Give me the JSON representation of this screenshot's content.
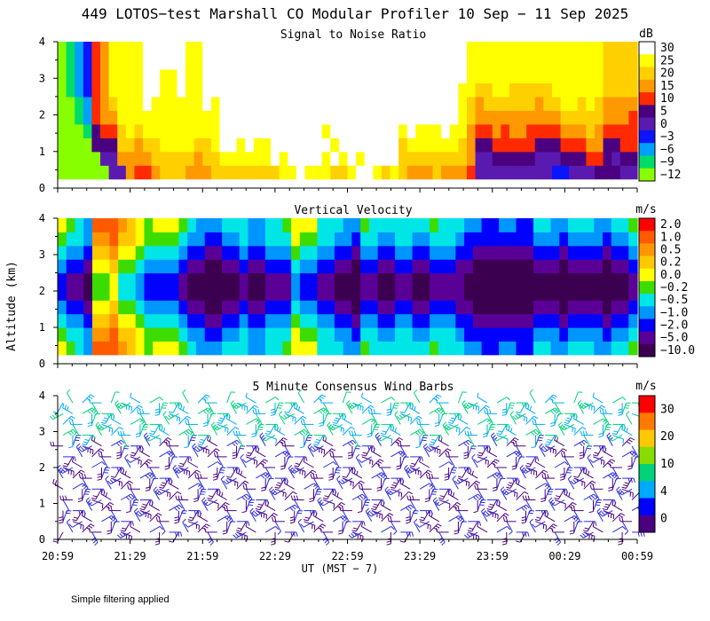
{
  "title": "449 LOTOS−test Marshall CO Modular Profiler 10 Sep − 11 Sep 2025",
  "xlabel": "UT  (MST − 7)",
  "ylabel": "Altitude (km)",
  "footnote": "Simple filtering applied",
  "x_ticks": [
    "20:59",
    "21:29",
    "21:59",
    "22:29",
    "22:59",
    "23:29",
    "23:59",
    "00:29",
    "00:59"
  ],
  "chart_data": [
    {
      "type": "heatmap",
      "title": "Signal to Noise Ratio",
      "ylim": [
        0,
        4
      ],
      "y_ticks": [
        "0",
        "1",
        "2",
        "3",
        "4"
      ],
      "colorbar_unit": "dB",
      "colorbar_levels": [
        "30",
        "25",
        "20",
        "15",
        "10",
        "5",
        "0",
        "−3",
        "−6",
        "−9",
        "−12"
      ],
      "colorbar_colors": [
        "#ffffff",
        "#ffff00",
        "#ffd000",
        "#ff9900",
        "#ff2a00",
        "#4b0080",
        "#5a1ab0",
        "#0a14ff",
        "#00a0ff",
        "#00dd66",
        "#88ff00"
      ],
      "data_start_km": 0.25,
      "cells": [
        "0000004476678887778888888899A999889AA9898777877764444444443344455544",
        "0000044777788888788999999A9ABAA9A9A9AAAA8888888874455555444555665455",
        "0000555887889999889AA9A99ABAABAA9AAAAAAA8999999875566666555666775566",
        "0001566898999999999AAAAABBBBBBB9BBBBBBBB9A999A9976676776666777876666",
        "0012677999999999999BAAABBBBBBBBABBBBBBBBAAAAAAA987777777777888887776",
        "0012678999A999999A9BBBBBBBBBBBBBBBBBBBBBAAABAAB987888888788998987777",
        "0123679999AA99A99AABBBBBBBBBBBBBBBBBBBBBBAABAAB998899888889999998888",
        "0123679999AA99A99AABBBBBBBBBBBBBBBBBBBBBBBABBBBA99999999999999998888",
        "0123679999AAAAA99AABBBBBBBBBBBBBBBBBBBBBBBBBBBBA99999999999999998888",
        "0123679999AAAAA99AABBBBBBBBBBBBBBBBBBBBBBBBBBBBA99999999999999998888"
      ]
    },
    {
      "type": "heatmap",
      "title": "Vertical Velocity",
      "ylim": [
        0,
        4
      ],
      "y_ticks": [
        "0",
        "1",
        "2",
        "3",
        "4"
      ],
      "colorbar_unit": "m/s",
      "colorbar_levels": [
        "2.0",
        "1.0",
        "0.5",
        "0.2",
        "0.0",
        "−0.2",
        "−0.5",
        "−1.0",
        "−2.0",
        "−5.0",
        "−10.0"
      ],
      "colorbar_colors": [
        "#ff0000",
        "#ff5a00",
        "#ff9600",
        "#ffc800",
        "#ffff00",
        "#3cdc00",
        "#00e6e6",
        "#0096ff",
        "#0000ff",
        "#5a0096",
        "#3c0050"
      ],
      "data_start_km": 0.25,
      "cells": [
        "6543999876566654333444334456664443354444444544433223322443344433445",
        "5443889776555543322334334446554433244334433444322222222333233332334",
        "4332778665444432211223223335443322133223322333221111111222122221223",
        "3221667554333321100112112224332211022112211222110000000111011110112",
        "2110556443222210000001001113221100011001100111100000000000000000001",
        "2110556443222210000001001113221100011001100111100000000000000000001",
        "3221667554333321100112112224332211022112211222110000000111011110112",
        "4332778665444432211223223335443322133223322333221111111222122221223",
        "5443889776555543322334334446554433244334433444322222222333233332334",
        "6543999876566654333444334456664443354444444544433223322443344433445"
      ]
    },
    {
      "type": "wind_barbs",
      "title": "5 Minute Consensus Wind Barbs",
      "ylim": [
        0,
        4
      ],
      "y_ticks": [
        "0",
        "1",
        "2",
        "3",
        "4"
      ],
      "colorbar_unit": "m/s",
      "colorbar_levels": [
        "30",
        "20",
        "10",
        "4",
        "0"
      ],
      "colorbar_colors": [
        "#ff0000",
        "#ff7a00",
        "#ffc800",
        "#88dd00",
        "#00d27a",
        "#00aaff",
        "#0000ff",
        "#4b0080"
      ],
      "barb_heights_km": [
        0.2,
        0.5,
        0.8,
        1.1,
        1.4,
        1.7,
        2.0,
        2.3,
        2.6,
        2.9,
        3.2,
        3.5,
        3.8
      ],
      "barbs_per_level": 60,
      "direction_pattern_deg": [
        210,
        330,
        45,
        150,
        270,
        20,
        110,
        240,
        300,
        60,
        180,
        90
      ],
      "speed_pattern_ms": [
        1,
        2,
        3,
        1,
        2,
        5,
        3,
        1,
        2,
        4,
        2,
        3
      ]
    }
  ]
}
